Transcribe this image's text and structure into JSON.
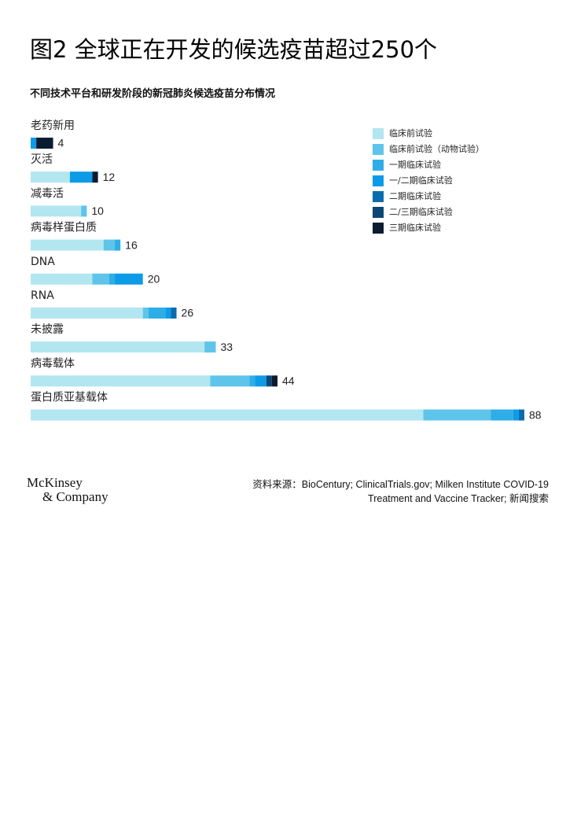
{
  "chart_data": {
    "type": "stacked-barh",
    "title": "图2 全球正在开发的候选疫苗超过250个",
    "subtitle": "不同技术平台和研发阶段的新冠肺炎候选疫苗分布情况",
    "categories": [
      "老药新用",
      "灭活",
      "减毒活",
      "病毒样蛋白质",
      "DNA",
      "RNA",
      "未披露",
      "病毒载体",
      "蛋白质亚基载体"
    ],
    "totals": [
      4,
      12,
      10,
      16,
      20,
      26,
      33,
      44,
      88
    ],
    "series": [
      {
        "name": "临床前试验",
        "color": "#b2e6f0",
        "values": [
          0,
          7,
          9,
          13,
          11,
          20,
          31,
          32,
          70
        ]
      },
      {
        "name": "临床前试验（动物试验）",
        "color": "#5ec4ea",
        "values": [
          0,
          0,
          1,
          2,
          3,
          1,
          2,
          7,
          12
        ]
      },
      {
        "name": "一期临床试验",
        "color": "#2eaee6",
        "values": [
          0,
          0,
          0,
          1,
          1,
          3,
          0,
          1,
          4
        ]
      },
      {
        "name": "一/二期临床试验",
        "color": "#0d9be8",
        "values": [
          1,
          4,
          0,
          0,
          5,
          1,
          0,
          2,
          1
        ]
      },
      {
        "name": "二期临床试验",
        "color": "#0a6cad",
        "values": [
          0,
          0,
          0,
          0,
          0,
          1,
          0,
          0,
          1
        ]
      },
      {
        "name": "二/三期临床试验",
        "color": "#0b4675",
        "values": [
          0,
          0,
          0,
          0,
          0,
          0,
          0,
          1,
          0
        ]
      },
      {
        "name": "三期临床试验",
        "color": "#0b1c30",
        "values": [
          3,
          1,
          0,
          0,
          0,
          0,
          0,
          1,
          0
        ]
      }
    ],
    "legend": "top-right",
    "source": "资料来源：BioCentury; ClinicalTrials.gov;  Milken Institute COVID-19 Treatment  and Vaccine Tracker; 新闻搜索",
    "logo": [
      "McKinsey",
      "& Company"
    ]
  }
}
